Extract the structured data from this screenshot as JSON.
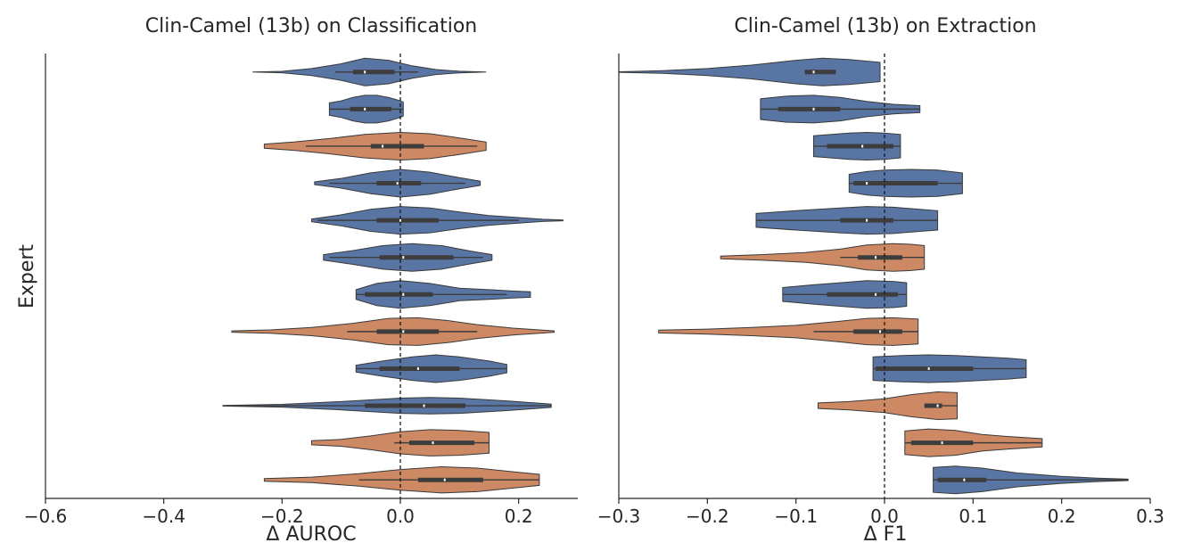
{
  "chart_data": [
    {
      "type": "violin",
      "title": "Clin-Camel (13b) on Classification",
      "xlabel": "Δ AUROC",
      "ylabel": "Expert",
      "xlim": [
        -0.6,
        0.3
      ],
      "xticks": [
        -0.6,
        -0.4,
        -0.2,
        0.0,
        0.2
      ],
      "tick_labels": [
        "−0.6",
        "−0.4",
        "−0.2",
        "0.0",
        "0.2"
      ],
      "reference_line": 0,
      "colors": {
        "blue": "#5875a4",
        "orange": "#cc8963"
      },
      "violins": [
        {
          "min": -0.25,
          "max": 0.145,
          "q1": -0.08,
          "median": -0.06,
          "q3": -0.01,
          "wlo": -0.11,
          "whi": 0.03,
          "color": "blue",
          "profile": [
            [
              -0.25,
              0.0
            ],
            [
              -0.2,
              0.05
            ],
            [
              -0.15,
              0.25
            ],
            [
              -0.1,
              0.6
            ],
            [
              -0.06,
              1.0
            ],
            [
              -0.02,
              0.85
            ],
            [
              0.02,
              0.45
            ],
            [
              0.06,
              0.18
            ],
            [
              0.1,
              0.06
            ],
            [
              0.145,
              0.0
            ]
          ]
        },
        {
          "min": -0.12,
          "max": 0.005,
          "q1": -0.085,
          "median": -0.06,
          "q3": -0.015,
          "wlo": -0.12,
          "whi": 0.005,
          "color": "blue",
          "profile": [
            [
              -0.12,
              0.45
            ],
            [
              -0.1,
              0.6
            ],
            [
              -0.08,
              0.85
            ],
            [
              -0.06,
              1.0
            ],
            [
              -0.04,
              1.0
            ],
            [
              -0.02,
              0.85
            ],
            [
              0.0,
              0.6
            ],
            [
              0.005,
              0.5
            ]
          ]
        },
        {
          "min": -0.23,
          "max": 0.145,
          "q1": -0.05,
          "median": -0.03,
          "q3": 0.04,
          "wlo": -0.16,
          "whi": 0.13,
          "color": "orange",
          "profile": [
            [
              -0.23,
              0.15
            ],
            [
              -0.18,
              0.3
            ],
            [
              -0.12,
              0.55
            ],
            [
              -0.06,
              0.85
            ],
            [
              0.0,
              1.0
            ],
            [
              0.05,
              0.9
            ],
            [
              0.1,
              0.6
            ],
            [
              0.145,
              0.3
            ]
          ]
        },
        {
          "min": -0.145,
          "max": 0.135,
          "q1": -0.04,
          "median": -0.005,
          "q3": 0.035,
          "wlo": -0.12,
          "whi": 0.11,
          "color": "blue",
          "profile": [
            [
              -0.145,
              0.1
            ],
            [
              -0.1,
              0.35
            ],
            [
              -0.05,
              0.75
            ],
            [
              0.0,
              1.0
            ],
            [
              0.05,
              0.8
            ],
            [
              0.1,
              0.4
            ],
            [
              0.135,
              0.15
            ]
          ]
        },
        {
          "min": -0.15,
          "max": 0.275,
          "q1": -0.04,
          "median": 0.0,
          "q3": 0.065,
          "wlo": -0.14,
          "whi": 0.2,
          "color": "blue",
          "profile": [
            [
              -0.15,
              0.1
            ],
            [
              -0.1,
              0.4
            ],
            [
              -0.05,
              0.8
            ],
            [
              0.0,
              1.0
            ],
            [
              0.05,
              0.9
            ],
            [
              0.1,
              0.6
            ],
            [
              0.15,
              0.35
            ],
            [
              0.2,
              0.2
            ],
            [
              0.24,
              0.08
            ],
            [
              0.275,
              0.03
            ]
          ]
        },
        {
          "min": -0.13,
          "max": 0.155,
          "q1": -0.035,
          "median": 0.005,
          "q3": 0.09,
          "wlo": -0.12,
          "whi": 0.14,
          "color": "blue",
          "profile": [
            [
              -0.13,
              0.2
            ],
            [
              -0.08,
              0.5
            ],
            [
              -0.03,
              0.85
            ],
            [
              0.02,
              1.0
            ],
            [
              0.07,
              0.85
            ],
            [
              0.12,
              0.45
            ],
            [
              0.155,
              0.2
            ]
          ]
        },
        {
          "min": -0.075,
          "max": 0.22,
          "q1": -0.06,
          "median": 0.005,
          "q3": 0.055,
          "wlo": -0.075,
          "whi": 0.18,
          "color": "blue",
          "profile": [
            [
              -0.075,
              0.35
            ],
            [
              -0.04,
              0.8
            ],
            [
              0.0,
              1.0
            ],
            [
              0.05,
              0.8
            ],
            [
              0.1,
              0.45
            ],
            [
              0.15,
              0.35
            ],
            [
              0.19,
              0.25
            ],
            [
              0.22,
              0.2
            ]
          ]
        },
        {
          "min": -0.285,
          "max": 0.26,
          "q1": -0.04,
          "median": 0.005,
          "q3": 0.065,
          "wlo": -0.09,
          "whi": 0.13,
          "color": "orange",
          "profile": [
            [
              -0.285,
              0.05
            ],
            [
              -0.22,
              0.12
            ],
            [
              -0.15,
              0.3
            ],
            [
              -0.08,
              0.6
            ],
            [
              -0.02,
              0.95
            ],
            [
              0.03,
              1.0
            ],
            [
              0.08,
              0.8
            ],
            [
              0.13,
              0.5
            ],
            [
              0.19,
              0.25
            ],
            [
              0.26,
              0.05
            ]
          ]
        },
        {
          "min": -0.075,
          "max": 0.18,
          "q1": -0.035,
          "median": 0.03,
          "q3": 0.1,
          "wlo": -0.075,
          "whi": 0.18,
          "color": "blue",
          "profile": [
            [
              -0.075,
              0.25
            ],
            [
              -0.03,
              0.55
            ],
            [
              0.02,
              0.85
            ],
            [
              0.06,
              1.0
            ],
            [
              0.1,
              0.85
            ],
            [
              0.15,
              0.55
            ],
            [
              0.18,
              0.3
            ]
          ]
        },
        {
          "min": -0.3,
          "max": 0.255,
          "q1": -0.06,
          "median": 0.04,
          "q3": 0.11,
          "wlo": -0.3,
          "whi": 0.255,
          "color": "blue",
          "profile": [
            [
              -0.3,
              0.02
            ],
            [
              -0.2,
              0.1
            ],
            [
              -0.1,
              0.3
            ],
            [
              0.0,
              0.55
            ],
            [
              0.05,
              0.6
            ],
            [
              0.1,
              0.55
            ],
            [
              0.18,
              0.35
            ],
            [
              0.255,
              0.12
            ]
          ]
        },
        {
          "min": -0.15,
          "max": 0.15,
          "q1": 0.015,
          "median": 0.055,
          "q3": 0.125,
          "wlo": -0.01,
          "whi": 0.15,
          "color": "orange",
          "profile": [
            [
              -0.15,
              0.15
            ],
            [
              -0.1,
              0.25
            ],
            [
              -0.05,
              0.5
            ],
            [
              0.0,
              0.8
            ],
            [
              0.05,
              0.95
            ],
            [
              0.1,
              0.9
            ],
            [
              0.15,
              0.75
            ]
          ]
        },
        {
          "min": -0.23,
          "max": 0.235,
          "q1": 0.03,
          "median": 0.075,
          "q3": 0.14,
          "wlo": -0.07,
          "whi": 0.235,
          "color": "orange",
          "profile": [
            [
              -0.23,
              0.1
            ],
            [
              -0.15,
              0.2
            ],
            [
              -0.07,
              0.45
            ],
            [
              0.0,
              0.75
            ],
            [
              0.07,
              0.95
            ],
            [
              0.13,
              0.85
            ],
            [
              0.2,
              0.55
            ],
            [
              0.235,
              0.4
            ]
          ]
        }
      ]
    },
    {
      "type": "violin",
      "title": "Clin-Camel (13b) on Extraction",
      "xlabel": "Δ F1",
      "ylabel": "",
      "xlim": [
        -0.3,
        0.3
      ],
      "xticks": [
        -0.3,
        -0.2,
        -0.1,
        0.0,
        0.1,
        0.2,
        0.3
      ],
      "tick_labels": [
        "−0.3",
        "−0.2",
        "−0.1",
        "0.0",
        "0.1",
        "0.2",
        "0.3"
      ],
      "reference_line": 0,
      "colors": {
        "blue": "#5875a4",
        "orange": "#cc8963"
      },
      "violins": [
        {
          "min": -0.3,
          "max": -0.005,
          "q1": -0.09,
          "median": -0.08,
          "q3": -0.055,
          "wlo": -0.09,
          "whi": -0.055,
          "color": "blue",
          "profile": [
            [
              -0.3,
              0.02
            ],
            [
              -0.25,
              0.1
            ],
            [
              -0.2,
              0.25
            ],
            [
              -0.15,
              0.5
            ],
            [
              -0.1,
              0.85
            ],
            [
              -0.07,
              1.0
            ],
            [
              -0.04,
              0.9
            ],
            [
              -0.005,
              0.7
            ]
          ]
        },
        {
          "min": -0.14,
          "max": 0.04,
          "q1": -0.12,
          "median": -0.08,
          "q3": -0.05,
          "wlo": -0.14,
          "whi": 0.04,
          "color": "blue",
          "profile": [
            [
              -0.14,
              0.75
            ],
            [
              -0.11,
              0.95
            ],
            [
              -0.08,
              1.0
            ],
            [
              -0.05,
              0.85
            ],
            [
              -0.02,
              0.55
            ],
            [
              0.01,
              0.35
            ],
            [
              0.04,
              0.25
            ]
          ]
        },
        {
          "min": -0.08,
          "max": 0.018,
          "q1": -0.065,
          "median": -0.025,
          "q3": 0.01,
          "wlo": -0.08,
          "whi": 0.018,
          "color": "blue",
          "profile": [
            [
              -0.08,
              0.75
            ],
            [
              -0.06,
              0.85
            ],
            [
              -0.04,
              0.95
            ],
            [
              -0.02,
              1.0
            ],
            [
              0.0,
              0.95
            ],
            [
              0.018,
              0.85
            ]
          ]
        },
        {
          "min": -0.04,
          "max": 0.088,
          "q1": -0.035,
          "median": -0.02,
          "q3": 0.06,
          "wlo": -0.04,
          "whi": 0.088,
          "color": "blue",
          "profile": [
            [
              -0.04,
              0.65
            ],
            [
              -0.02,
              0.85
            ],
            [
              0.0,
              0.95
            ],
            [
              0.03,
              1.0
            ],
            [
              0.06,
              0.95
            ],
            [
              0.088,
              0.75
            ]
          ]
        },
        {
          "min": -0.145,
          "max": 0.06,
          "q1": -0.05,
          "median": -0.02,
          "q3": 0.01,
          "wlo": -0.145,
          "whi": 0.06,
          "color": "blue",
          "profile": [
            [
              -0.145,
              0.5
            ],
            [
              -0.1,
              0.7
            ],
            [
              -0.05,
              0.9
            ],
            [
              -0.02,
              1.0
            ],
            [
              0.01,
              0.95
            ],
            [
              0.04,
              0.8
            ],
            [
              0.06,
              0.7
            ]
          ]
        },
        {
          "min": -0.185,
          "max": 0.045,
          "q1": -0.03,
          "median": -0.01,
          "q3": 0.02,
          "wlo": -0.05,
          "whi": 0.045,
          "color": "orange",
          "profile": [
            [
              -0.185,
              0.1
            ],
            [
              -0.14,
              0.2
            ],
            [
              -0.09,
              0.35
            ],
            [
              -0.05,
              0.6
            ],
            [
              -0.02,
              0.9
            ],
            [
              0.01,
              1.0
            ],
            [
              0.03,
              0.95
            ],
            [
              0.045,
              0.85
            ]
          ]
        },
        {
          "min": -0.115,
          "max": 0.025,
          "q1": -0.065,
          "median": -0.01,
          "q3": 0.015,
          "wlo": -0.115,
          "whi": 0.025,
          "color": "blue",
          "profile": [
            [
              -0.115,
              0.5
            ],
            [
              -0.08,
              0.7
            ],
            [
              -0.05,
              0.85
            ],
            [
              -0.02,
              1.0
            ],
            [
              0.01,
              0.95
            ],
            [
              0.025,
              0.85
            ]
          ]
        },
        {
          "min": -0.255,
          "max": 0.038,
          "q1": -0.035,
          "median": -0.005,
          "q3": 0.02,
          "wlo": -0.08,
          "whi": 0.038,
          "color": "orange",
          "profile": [
            [
              -0.255,
              0.1
            ],
            [
              -0.2,
              0.18
            ],
            [
              -0.15,
              0.3
            ],
            [
              -0.1,
              0.45
            ],
            [
              -0.05,
              0.75
            ],
            [
              -0.02,
              0.95
            ],
            [
              0.01,
              1.0
            ],
            [
              0.038,
              0.9
            ]
          ]
        },
        {
          "min": -0.013,
          "max": 0.16,
          "q1": -0.01,
          "median": 0.05,
          "q3": 0.1,
          "wlo": -0.013,
          "whi": 0.16,
          "color": "blue",
          "profile": [
            [
              -0.013,
              0.85
            ],
            [
              0.02,
              0.95
            ],
            [
              0.05,
              1.0
            ],
            [
              0.08,
              0.95
            ],
            [
              0.11,
              0.85
            ],
            [
              0.14,
              0.75
            ],
            [
              0.16,
              0.65
            ]
          ]
        },
        {
          "min": -0.075,
          "max": 0.082,
          "q1": 0.045,
          "median": 0.06,
          "q3": 0.065,
          "wlo": 0.045,
          "whi": 0.082,
          "color": "orange",
          "profile": [
            [
              -0.075,
              0.2
            ],
            [
              -0.04,
              0.3
            ],
            [
              0.0,
              0.5
            ],
            [
              0.03,
              0.8
            ],
            [
              0.06,
              1.0
            ],
            [
              0.082,
              0.95
            ]
          ]
        },
        {
          "min": 0.023,
          "max": 0.178,
          "q1": 0.03,
          "median": 0.065,
          "q3": 0.1,
          "wlo": 0.023,
          "whi": 0.178,
          "color": "orange",
          "profile": [
            [
              0.023,
              0.85
            ],
            [
              0.05,
              1.0
            ],
            [
              0.08,
              0.9
            ],
            [
              0.11,
              0.6
            ],
            [
              0.14,
              0.45
            ],
            [
              0.178,
              0.3
            ]
          ]
        },
        {
          "min": 0.055,
          "max": 0.275,
          "q1": 0.06,
          "median": 0.09,
          "q3": 0.115,
          "wlo": 0.055,
          "whi": 0.275,
          "color": "blue",
          "profile": [
            [
              0.055,
              0.9
            ],
            [
              0.08,
              1.0
            ],
            [
              0.11,
              0.85
            ],
            [
              0.15,
              0.5
            ],
            [
              0.2,
              0.25
            ],
            [
              0.24,
              0.12
            ],
            [
              0.275,
              0.05
            ]
          ]
        }
      ]
    }
  ]
}
